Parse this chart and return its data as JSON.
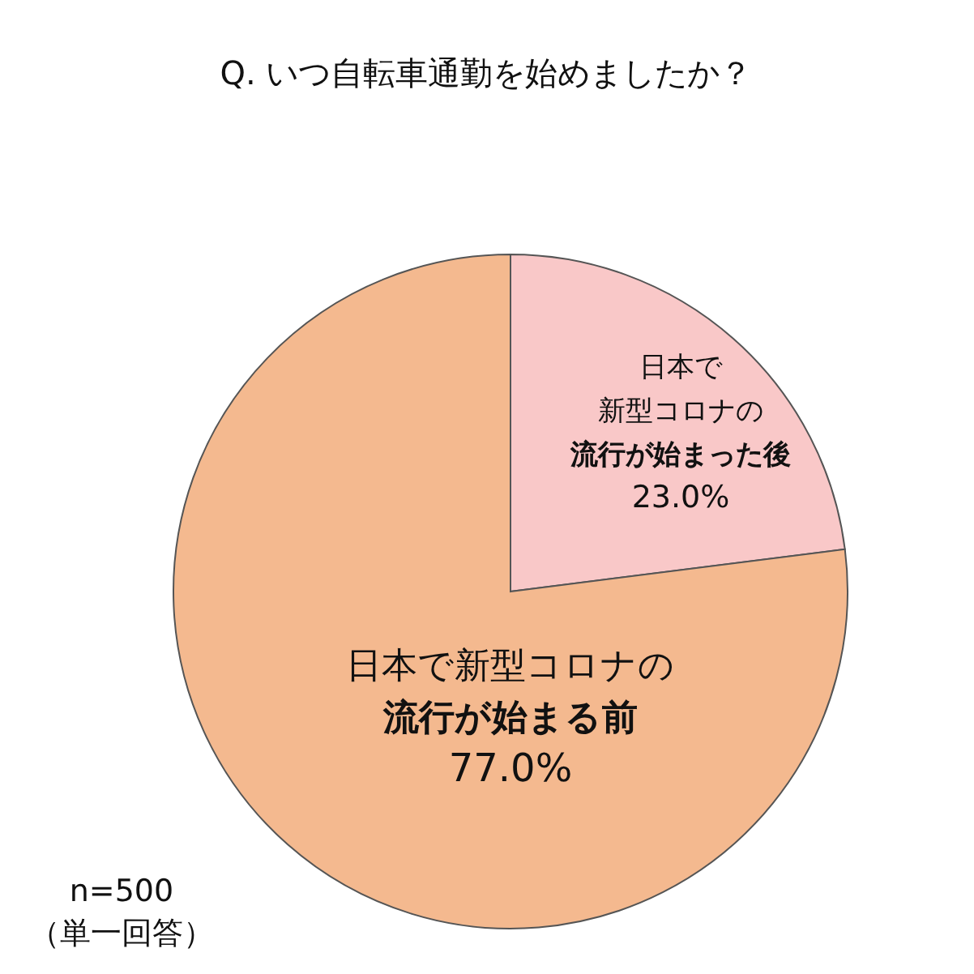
{
  "chart_data": {
    "type": "pie",
    "title": "Q. いつ自転車通勤を始めましたか？",
    "categories": [
      "日本で新型コロナの流行が始まった後",
      "日本で新型コロナの流行が始まる前"
    ],
    "values": [
      23.0,
      77.0
    ],
    "value_labels": [
      "23.0%",
      "77.0%"
    ],
    "colors": [
      "#f9c8c8",
      "#f4b98f"
    ],
    "annotations": [
      "n=500",
      "（単一回答）"
    ]
  }
}
